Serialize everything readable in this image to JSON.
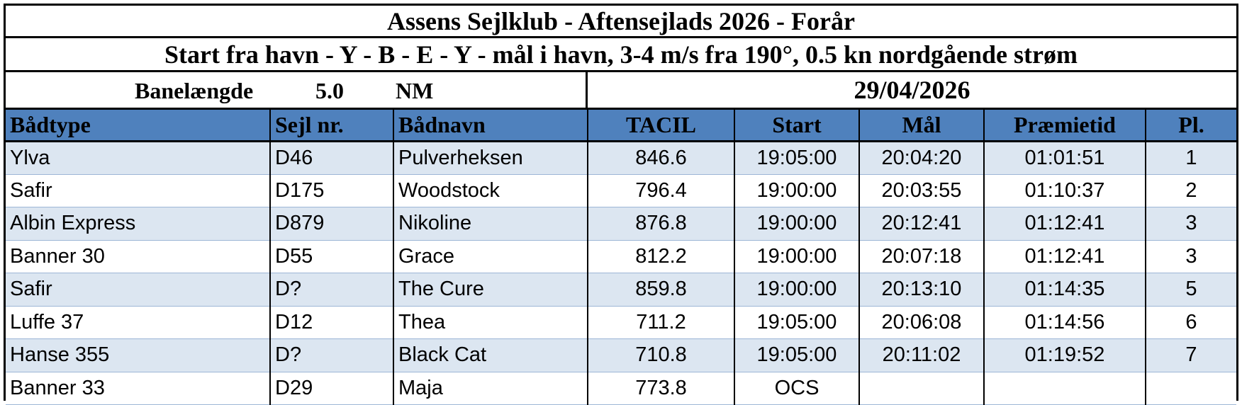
{
  "header": {
    "title": "Assens Sejlklub - Aftensejlads 2026 - Forår",
    "course": "Start fra havn - Y - B - E - Y - mål i havn, 3-4 m/s fra 190°, 0.5 kn nordgående strøm",
    "length_label": "Banelængde",
    "length_value": "5.0",
    "length_unit": "NM",
    "date": "29/04/2026"
  },
  "columns": [
    "Bådtype",
    "Sejl nr.",
    "Bådnavn",
    "TACIL",
    "Start",
    "Mål",
    "Præmietid",
    "Pl."
  ],
  "rows": [
    [
      "Ylva",
      "D46",
      "Pulverheksen",
      "846.6",
      "19:05:00",
      "20:04:20",
      "01:01:51",
      "1"
    ],
    [
      "Safir",
      "D175",
      "Woodstock",
      "796.4",
      "19:00:00",
      "20:03:55",
      "01:10:37",
      "2"
    ],
    [
      "Albin Express",
      "D879",
      "Nikoline",
      "876.8",
      "19:00:00",
      "20:12:41",
      "01:12:41",
      "3"
    ],
    [
      "Banner 30",
      "D55",
      "Grace",
      "812.2",
      "19:00:00",
      "20:07:18",
      "01:12:41",
      "3"
    ],
    [
      "Safir",
      "D?",
      "The Cure",
      "859.8",
      "19:00:00",
      "20:13:10",
      "01:14:35",
      "5"
    ],
    [
      "Luffe 37",
      "D12",
      "Thea",
      "711.2",
      "19:05:00",
      "20:06:08",
      "01:14:56",
      "6"
    ],
    [
      "Hanse 355",
      "D?",
      "Black Cat",
      "710.8",
      "19:05:00",
      "20:11:02",
      "01:19:52",
      "7"
    ],
    [
      "Banner 33",
      "D29",
      "Maja",
      "773.8",
      "OCS",
      "",
      "",
      ""
    ]
  ],
  "colors": {
    "header_fill": "#4f81bd",
    "band_fill": "#dce6f1",
    "border": "#000000"
  }
}
